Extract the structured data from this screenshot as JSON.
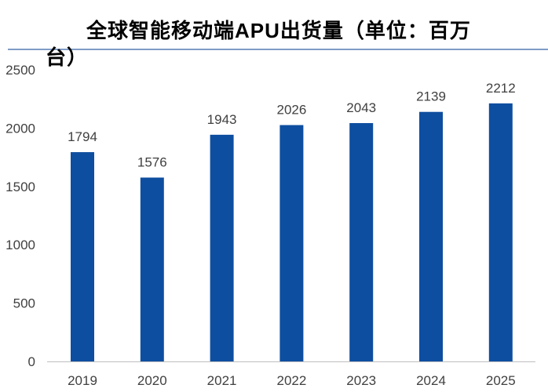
{
  "chart_data": {
    "type": "bar",
    "title": "全球智能移动端APU出货量（单位：百万台）",
    "categories": [
      "2019",
      "2020",
      "2021",
      "2022",
      "2023",
      "2024",
      "2025"
    ],
    "values": [
      1794,
      1576,
      1943,
      2026,
      2043,
      2139,
      2212
    ],
    "xlabel": "",
    "ylabel": "",
    "ylim": [
      0,
      2500
    ],
    "yticks": [
      0,
      500,
      1000,
      1500,
      2000,
      2500
    ],
    "grid": false,
    "bar_color": "#0e4ea0",
    "legend": "none"
  }
}
